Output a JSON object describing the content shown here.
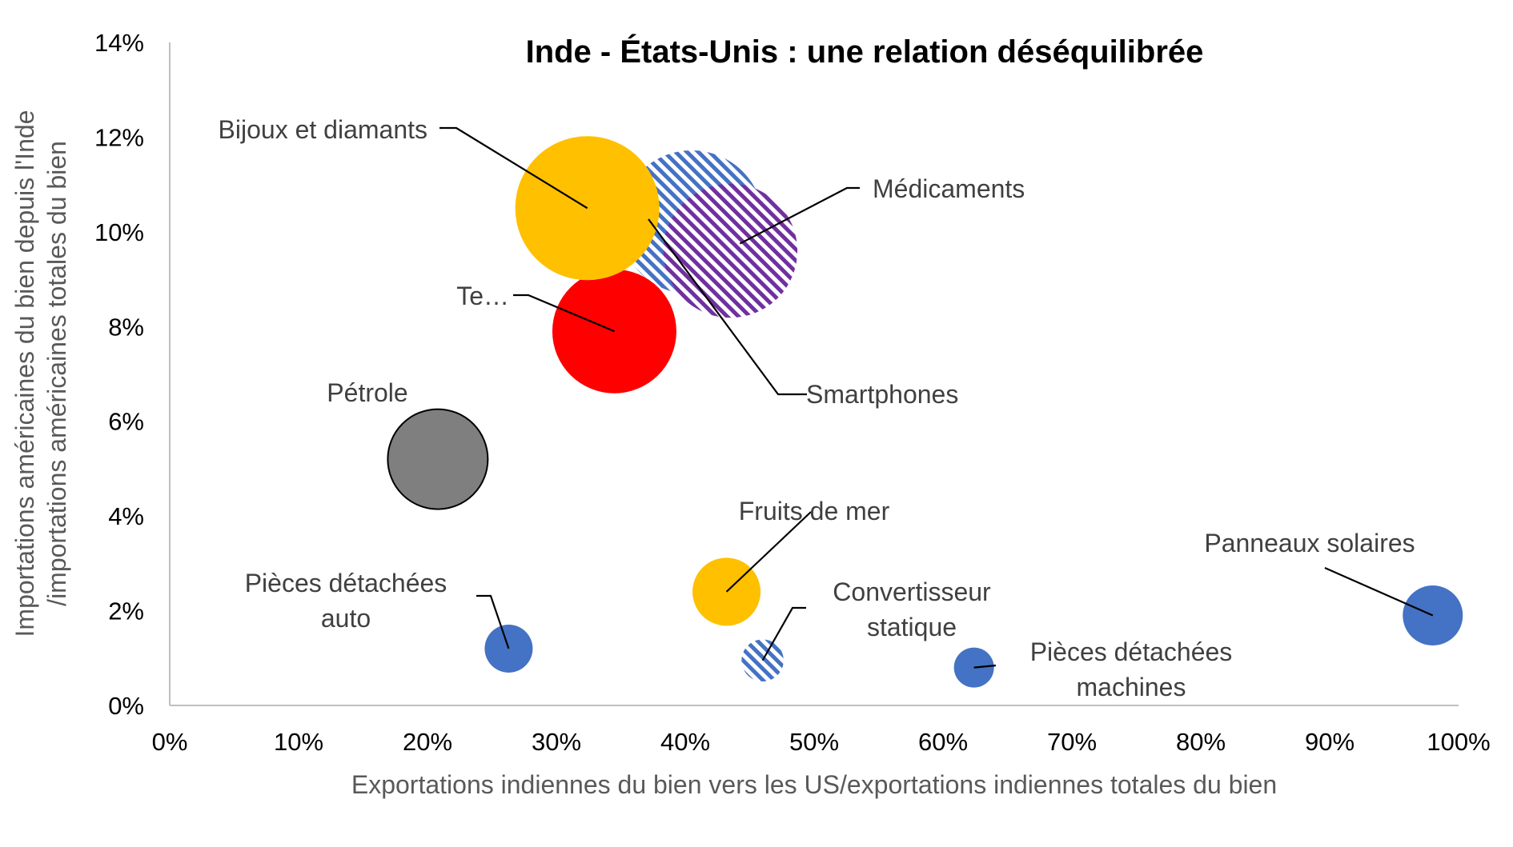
{
  "chart_data": {
    "type": "bubble",
    "title": "Inde - États-Unis : une relation déséquilibrée",
    "xlabel": "Exportations indiennes du bien vers les US/exportations indiennes totales du bien",
    "ylabel_line1": "Importations américaines du bien depuis l'Inde",
    "ylabel_line2": "/importations américaines totales du bien",
    "xlim": [
      0,
      100
    ],
    "ylim": [
      0,
      14
    ],
    "x_ticks": [
      "0%",
      "10%",
      "20%",
      "30%",
      "40%",
      "50%",
      "60%",
      "70%",
      "80%",
      "90%",
      "100%"
    ],
    "y_ticks": [
      "0%",
      "2%",
      "4%",
      "6%",
      "8%",
      "10%",
      "12%",
      "14%"
    ],
    "grid": false,
    "points": [
      {
        "label": "Smartphones",
        "x": 40.5,
        "y": 10.2,
        "size": 72,
        "color": "#4472C4",
        "pattern": "stripes-blue"
      },
      {
        "label": "Médicaments",
        "x": 43.5,
        "y": 9.6,
        "size": 67,
        "color": "#7030A0",
        "pattern": "stripes-purple"
      },
      {
        "label": "Te…",
        "x": 34.5,
        "y": 7.9,
        "size": 62,
        "color": "#FF0000",
        "pattern": "solid"
      },
      {
        "label": "Bijoux et diamants",
        "x": 32.4,
        "y": 10.5,
        "size": 72,
        "color": "#FFC000",
        "pattern": "solid"
      },
      {
        "label": "Pétrole",
        "x": 20.8,
        "y": 5.2,
        "size": 50,
        "color": "#7F7F7F",
        "pattern": "solid-outlined"
      },
      {
        "label": "Fruits de mer",
        "x": 43.2,
        "y": 2.4,
        "size": 34,
        "color": "#FFC000",
        "pattern": "solid"
      },
      {
        "label": "Pièces détachées auto",
        "x": 26.3,
        "y": 1.2,
        "size": 24,
        "color": "#4472C4",
        "pattern": "solid"
      },
      {
        "label": "Convertisseur statique",
        "x": 46.0,
        "y": 0.95,
        "size": 21,
        "color": "#4472C4",
        "pattern": "stripes-blue"
      },
      {
        "label": "Pièces détachées machines",
        "x": 62.4,
        "y": 0.8,
        "size": 20,
        "color": "#4472C4",
        "pattern": "solid"
      },
      {
        "label": "Panneaux solaires",
        "x": 98.0,
        "y": 1.9,
        "size": 30,
        "color": "#4472C4",
        "pattern": "solid"
      }
    ]
  }
}
